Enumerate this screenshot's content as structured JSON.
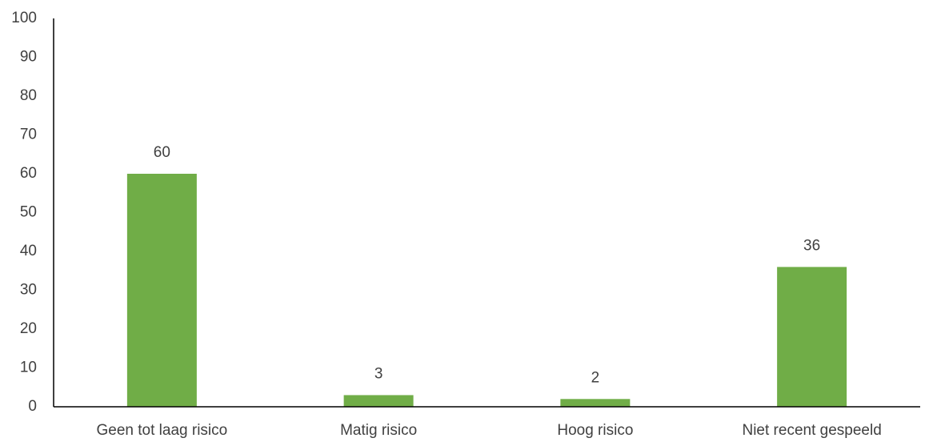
{
  "chart_data": {
    "type": "bar",
    "title": "",
    "xlabel": "",
    "ylabel": "",
    "categories": [
      "Geen tot laag risico",
      "Matig risico",
      "Hoog risico",
      "Niet recent gespeeld"
    ],
    "values": [
      60,
      3,
      2,
      36
    ],
    "data_labels": [
      "60",
      "3",
      "2",
      "36"
    ],
    "ylim": [
      0,
      100
    ],
    "yticks": [
      0,
      10,
      20,
      30,
      40,
      50,
      60,
      70,
      80,
      90,
      100
    ],
    "ytick_labels": [
      "0",
      "10",
      "20",
      "30",
      "40",
      "50",
      "60",
      "70",
      "80",
      "90",
      "100"
    ],
    "grid": false,
    "legend": "none",
    "bar_color": "#70AD47",
    "axis_color": "#000000",
    "text_color": "#404040"
  }
}
